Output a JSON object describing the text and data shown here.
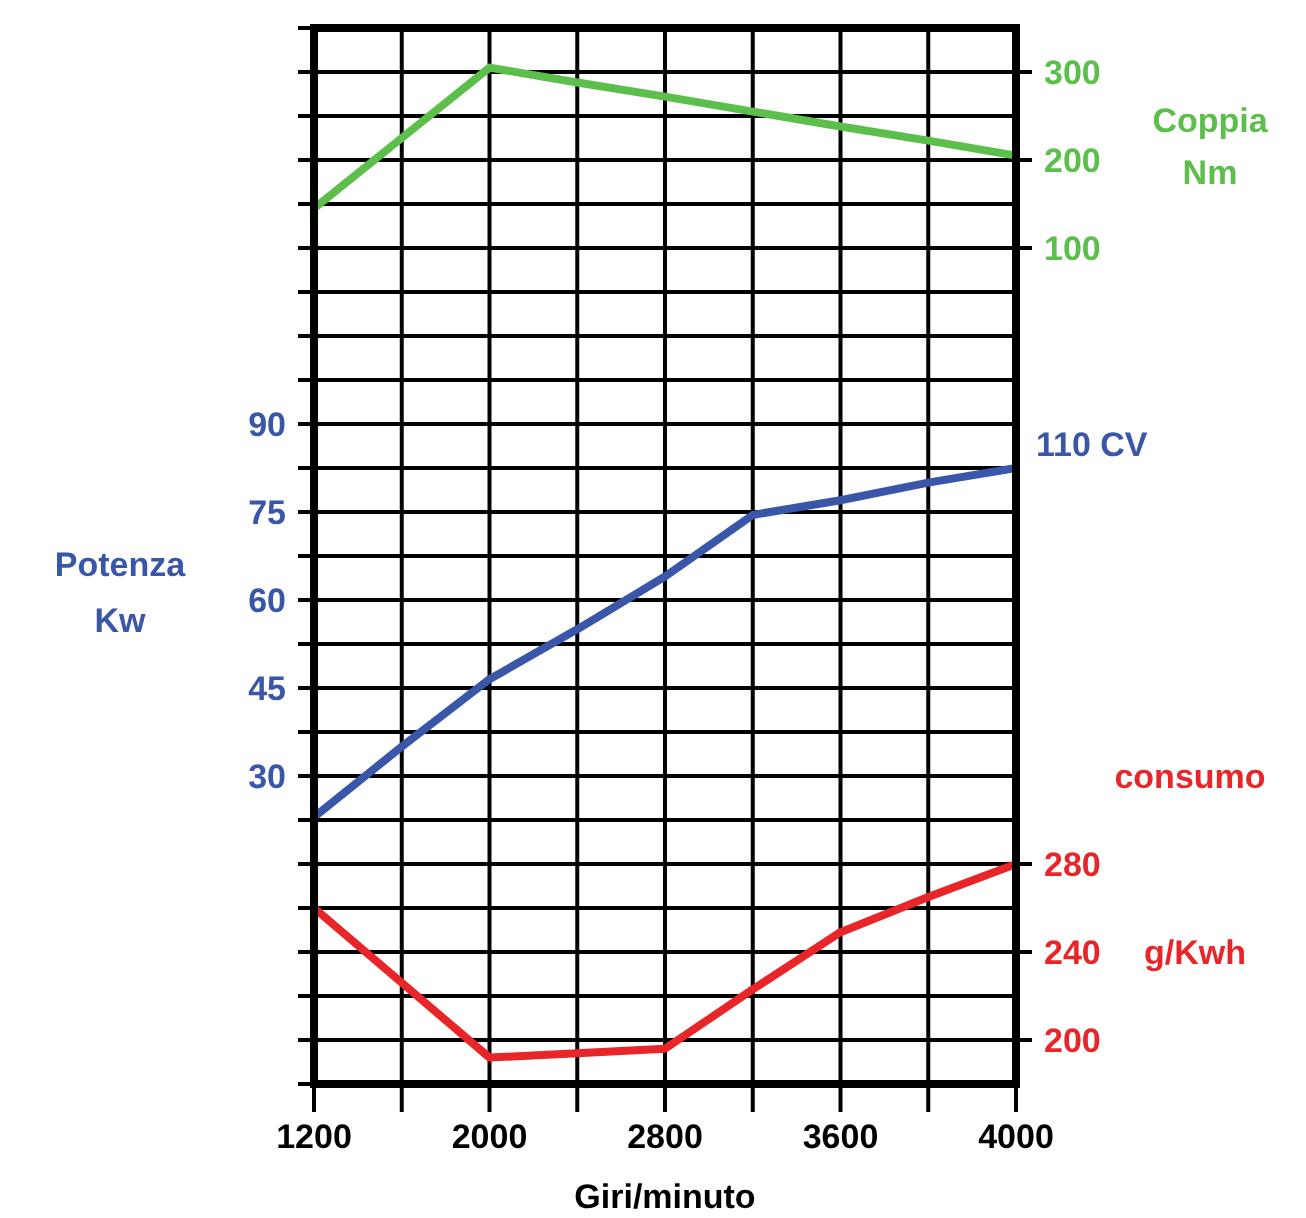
{
  "chart_data": {
    "type": "line",
    "xlabel": "Giri/minuto",
    "ylabel": "Potenza Kw",
    "y2label": "Coppia Nm",
    "y3label": "consumo g/Kwh",
    "categories": [
      "1200",
      null,
      "2000",
      null,
      "2800",
      null,
      "3600",
      null,
      "4000"
    ],
    "series": [
      {
        "color": "#5cbf4c",
        "axis": "y2",
        "values": [
          145,
          225,
          305,
          288,
          272,
          255,
          238,
          222,
          205
        ]
      },
      {
        "color": "#3a56a8",
        "axis": "y",
        "values": [
          23,
          35,
          46.5,
          55,
          64,
          74.5,
          77,
          80,
          82.5
        ]
      },
      {
        "color": "#e8262a",
        "axis": "y3",
        "values": [
          260,
          226,
          192,
          194,
          196,
          223,
          249,
          265,
          280
        ]
      }
    ],
    "ylim": [
      -22.5,
      157.5
    ],
    "yticks": [
      {
        "value": -22.5,
        "label": null
      },
      {
        "value": -15,
        "label": null
      },
      {
        "value": -7.5,
        "label": null
      },
      {
        "value": 0,
        "label": null
      },
      {
        "value": 7.5,
        "label": null
      },
      {
        "value": 15,
        "label": null
      },
      {
        "value": 22.5,
        "label": null
      },
      30,
      {
        "value": 37.5,
        "label": null
      },
      45,
      {
        "value": 52.5,
        "label": null
      },
      60,
      {
        "value": 67.5,
        "label": null
      },
      75,
      {
        "value": 82.5,
        "label": null
      },
      90,
      {
        "value": 97.5,
        "label": null
      },
      {
        "value": 105,
        "label": null
      },
      {
        "value": 112.5,
        "label": null
      },
      {
        "value": 120,
        "label": null
      },
      {
        "value": 127.5,
        "label": null
      },
      {
        "value": 135,
        "label": null
      },
      {
        "value": 142.5,
        "label": null
      },
      {
        "value": 150,
        "label": null
      },
      {
        "value": 157.5,
        "label": null
      }
    ],
    "y2lim": [
      -850,
      350
    ],
    "y2ticks": [
      100,
      200,
      300
    ],
    "y3lim": [
      180,
      660
    ],
    "y3ticks": [
      200,
      240,
      280
    ],
    "grid": true,
    "line_style": "solid",
    "marker": "none",
    "annotations": [
      {
        "text": "110 CV",
        "x": "4000",
        "y": 82.5
      }
    ]
  }
}
